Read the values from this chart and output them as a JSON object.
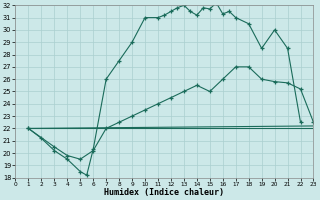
{
  "xlabel": "Humidex (Indice chaleur)",
  "xlim": [
    0,
    23
  ],
  "ylim": [
    18,
    32
  ],
  "bg_color": "#cce8e8",
  "grid_color": "#aacfcf",
  "line_color": "#1a6b5a",
  "curve1_x": [
    1,
    2,
    3,
    4,
    5,
    5.5,
    6,
    7,
    8,
    9,
    10,
    11,
    11.5,
    12,
    12.5,
    13,
    13.5,
    14,
    14.5,
    15,
    15.5,
    16,
    16.5,
    17,
    18,
    19,
    20,
    21,
    22
  ],
  "curve1_y": [
    22,
    21.2,
    20.2,
    19.5,
    18.5,
    18.2,
    20.3,
    26.0,
    27.5,
    29.0,
    31.0,
    31.0,
    31.2,
    31.5,
    31.8,
    32.0,
    31.5,
    31.2,
    31.8,
    31.7,
    32.2,
    31.3,
    31.5,
    31.0,
    30.5,
    28.5,
    30.0,
    28.5,
    22.5
  ],
  "curve2_x": [
    1,
    3,
    4,
    5,
    6,
    7,
    8,
    9,
    10,
    11,
    12,
    13,
    14,
    15,
    16,
    17,
    18,
    19,
    20,
    21,
    22,
    23
  ],
  "curve2_y": [
    22,
    20.5,
    19.8,
    19.5,
    20.2,
    22.0,
    22.5,
    23.0,
    23.5,
    24.0,
    24.5,
    25.0,
    25.5,
    25.0,
    26.0,
    27.0,
    27.0,
    26.0,
    25.8,
    25.7,
    25.2,
    22.5
  ],
  "curve3_x": [
    1,
    23
  ],
  "curve3_y": [
    22,
    22.2
  ],
  "curve4_x": [
    1,
    23
  ],
  "curve4_y": [
    22,
    22.0
  ]
}
